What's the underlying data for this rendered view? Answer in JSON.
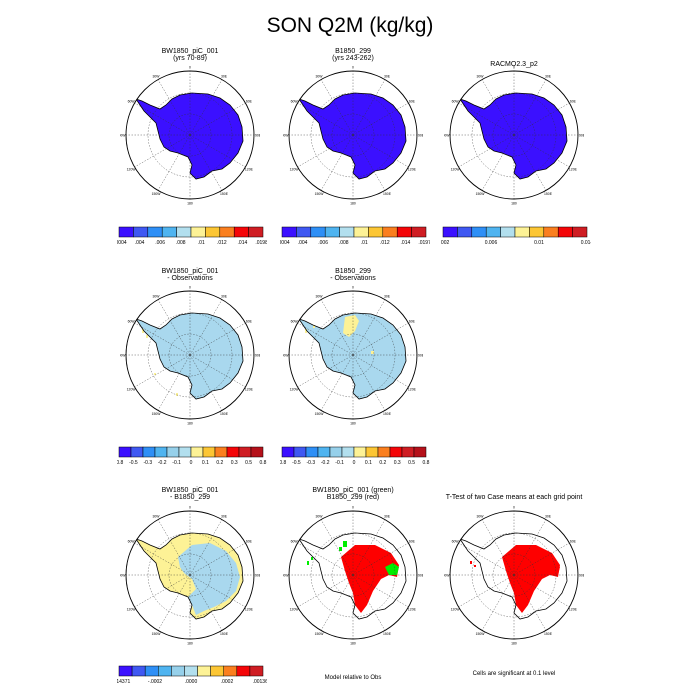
{
  "title": "SON Q2M (kg/kg)",
  "lon_labels": [
    "0",
    "30E",
    "60E",
    "90E",
    "120E",
    "150E",
    "180",
    "150W",
    "120W",
    "90W",
    "60W",
    "30W"
  ],
  "colors": {
    "deep_blue": "#3b10ff",
    "light_blue": "#a9d8ee",
    "yellow": "#fdf296",
    "red": "#fe0000",
    "green": "#00ee00"
  },
  "panels": [
    {
      "id": "p1",
      "title1": "BW1850_piC_001",
      "title2": "(yrs 70-89)"
    },
    {
      "id": "p2",
      "title1": "B1850_299",
      "title2": "(yrs 243-262)"
    },
    {
      "id": "p3",
      "title1": "RACMO2.3_p2",
      "title2": ""
    },
    {
      "id": "p4",
      "title1": "BW1850_piC_001",
      "title2": "- Observations"
    },
    {
      "id": "p5",
      "title1": "B1850_299",
      "title2": "- Observations"
    },
    {
      "id": "p7",
      "title1": "BW1850_piC_001",
      "title2": "- B1850_299"
    },
    {
      "id": "p8",
      "title1": "BW1850_piC_001 (green)",
      "title2": "B1850_299 (red)"
    },
    {
      "id": "p9",
      "title1": "T-Test of two Case means at each grid point",
      "title2": ""
    }
  ],
  "colorbars": {
    "cb1": {
      "labels": [
        ".00004",
        ".004",
        ".006",
        ".008",
        ".01",
        ".012",
        ".014",
        ".01982"
      ]
    },
    "cb2": {
      "labels": [
        ".00004",
        ".004",
        ".006",
        ".008",
        ".01",
        ".012",
        ".014",
        ".01972"
      ]
    },
    "cb3": {
      "labels": [
        "0.002",
        "0.006",
        "0.01",
        "0.014"
      ]
    },
    "cb4": {
      "labels": [
        "-0.8",
        "-0.5",
        "-0.3",
        "-0.2",
        "-0.1",
        "0",
        "0.1",
        "0.2",
        "0.3",
        "0.5",
        "0.8"
      ]
    },
    "cb5": {
      "labels": [
        "-0.8",
        "-0.5",
        "-0.3",
        "-0.2",
        "-0.1",
        "0",
        "0.1",
        "0.2",
        "0.3",
        "0.5",
        "0.8"
      ]
    },
    "cb7": {
      "labels": [
        "-.0014371",
        "-.0002",
        ".0000",
        ".0002",
        ".0013683"
      ]
    }
  },
  "notes": {
    "model_relative": "Model relative to Obs",
    "significance": "Cells are significant at 0.1 level"
  }
}
